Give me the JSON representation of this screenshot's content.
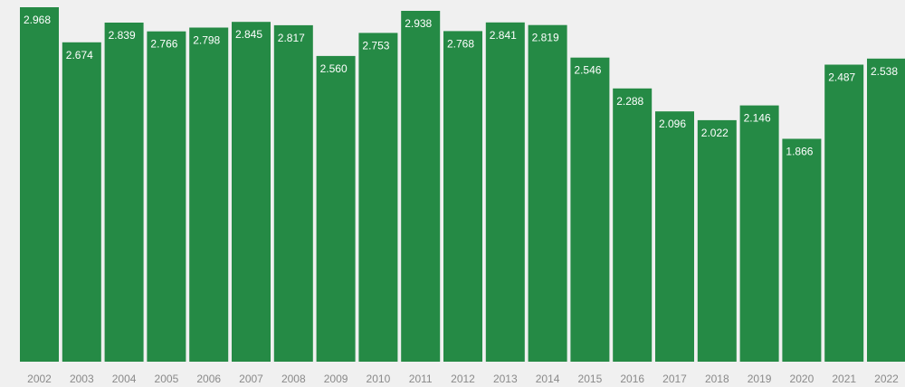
{
  "chart_data": {
    "type": "bar",
    "title": "",
    "xlabel": "",
    "ylabel": "",
    "categories": [
      "2002",
      "2003",
      "2004",
      "2005",
      "2006",
      "2007",
      "2008",
      "2009",
      "2010",
      "2011",
      "2012",
      "2013",
      "2014",
      "2015",
      "2016",
      "2017",
      "2018",
      "2019",
      "2020",
      "2021",
      "2022"
    ],
    "values": [
      2.968,
      2.674,
      2.839,
      2.766,
      2.798,
      2.845,
      2.817,
      2.56,
      2.753,
      2.938,
      2.768,
      2.841,
      2.819,
      2.546,
      2.288,
      2.096,
      2.022,
      2.146,
      1.866,
      2.487,
      2.538
    ],
    "value_labels": [
      "2.968",
      "2.674",
      "2.839",
      "2.766",
      "2.798",
      "2.845",
      "2.817",
      "2.560",
      "2.753",
      "2.938",
      "2.768",
      "2.841",
      "2.819",
      "2.546",
      "2.288",
      "2.096",
      "2.022",
      "2.146",
      "1.866",
      "2.487",
      "2.538"
    ],
    "ylim": [
      0,
      2.968
    ],
    "grid": false,
    "legend": "none",
    "colors": {
      "bar": "#258a45",
      "label": "#ffffff",
      "tick": "#8a8a8a",
      "background": "#f0f0f0"
    }
  }
}
